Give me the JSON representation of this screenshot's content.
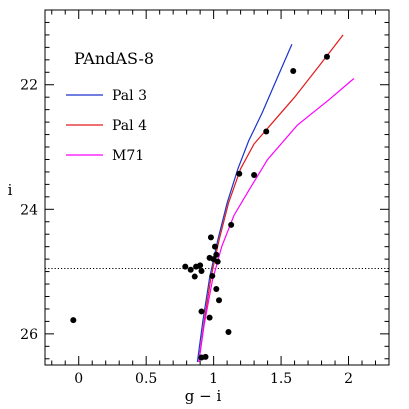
{
  "chart_data": {
    "type": "scatter",
    "title": "PAndAS-8",
    "xlabel": "g − i",
    "ylabel": "i",
    "xlim": [
      -0.25,
      2.3
    ],
    "ylim": [
      26.5,
      20.8
    ],
    "y_inverted": true,
    "xticks": [
      0,
      0.5,
      1,
      1.5,
      2
    ],
    "xtick_labels": [
      "0",
      "0.5",
      "1",
      "1.5",
      "2"
    ],
    "yticks": [
      22,
      24,
      26
    ],
    "ytick_labels": [
      "22",
      "24",
      "26"
    ],
    "grid": false,
    "legend_position": "top-left",
    "hline": {
      "y": 24.95,
      "style": "dotted"
    },
    "points": [
      {
        "x": -0.04,
        "y": 25.78
      },
      {
        "x": 0.79,
        "y": 24.92
      },
      {
        "x": 0.83,
        "y": 24.97
      },
      {
        "x": 0.86,
        "y": 25.08
      },
      {
        "x": 0.87,
        "y": 24.92
      },
      {
        "x": 0.9,
        "y": 24.9
      },
      {
        "x": 0.91,
        "y": 24.99
      },
      {
        "x": 0.91,
        "y": 25.64
      },
      {
        "x": 0.91,
        "y": 26.38
      },
      {
        "x": 0.94,
        "y": 26.37
      },
      {
        "x": 0.97,
        "y": 24.78
      },
      {
        "x": 0.97,
        "y": 25.74
      },
      {
        "x": 0.98,
        "y": 24.45
      },
      {
        "x": 0.99,
        "y": 25.07
      },
      {
        "x": 1.0,
        "y": 24.8
      },
      {
        "x": 1.01,
        "y": 24.6
      },
      {
        "x": 1.02,
        "y": 24.73
      },
      {
        "x": 1.02,
        "y": 25.28
      },
      {
        "x": 1.03,
        "y": 24.84
      },
      {
        "x": 1.04,
        "y": 25.46
      },
      {
        "x": 1.11,
        "y": 25.97
      },
      {
        "x": 1.13,
        "y": 24.25
      },
      {
        "x": 1.19,
        "y": 23.43
      },
      {
        "x": 1.3,
        "y": 23.45
      },
      {
        "x": 1.39,
        "y": 22.75
      },
      {
        "x": 1.59,
        "y": 21.78
      },
      {
        "x": 1.84,
        "y": 21.55
      }
    ],
    "series": [
      {
        "name": "Pal 3",
        "color": "#1a33cc",
        "x": [
          0.88,
          0.92,
          0.97,
          1.03,
          1.1,
          1.18,
          1.26,
          1.36,
          1.47,
          1.58
        ],
        "y": [
          26.45,
          25.8,
          25.1,
          24.5,
          23.9,
          23.35,
          22.9,
          22.45,
          21.9,
          21.35
        ]
      },
      {
        "name": "Pal 4",
        "color": "#e31a1c",
        "x": [
          0.89,
          0.93,
          0.98,
          1.04,
          1.11,
          1.2,
          1.3,
          1.42,
          1.6,
          1.8,
          1.96
        ],
        "y": [
          26.45,
          25.8,
          25.1,
          24.5,
          23.9,
          23.35,
          22.95,
          22.65,
          22.2,
          21.65,
          21.2
        ]
      },
      {
        "name": "M71",
        "color": "#ff00ff",
        "x": [
          0.89,
          0.93,
          0.99,
          1.06,
          1.15,
          1.26,
          1.4,
          1.62,
          1.85,
          2.04
        ],
        "y": [
          26.45,
          25.85,
          25.15,
          24.6,
          24.1,
          23.7,
          23.2,
          22.65,
          22.25,
          21.9
        ]
      }
    ]
  }
}
